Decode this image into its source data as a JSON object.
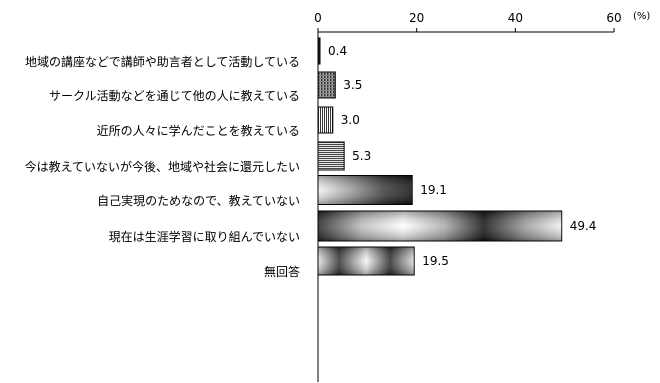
{
  "chart_data": {
    "type": "bar",
    "orientation": "horizontal",
    "unit": "(%)",
    "xlim": [
      0,
      60
    ],
    "ticks": [
      0,
      20,
      40,
      60
    ],
    "grid": false,
    "title": "",
    "xlabel": "",
    "ylabel": "",
    "categories": [
      "地域の講座などで講師や助言者として活動している",
      "サークル活動などを通じて他の人に教えている",
      "近所の人々に学んだことを教えている",
      "今は教えていないが今後、地域や社会に還元したい",
      "自己実現のためなので、教えていない",
      "現在は生涯学習に取り組んでいない",
      "無回答"
    ],
    "values": [
      0.4,
      3.5,
      3.0,
      5.3,
      19.1,
      49.4,
      19.5
    ],
    "value_labels": [
      "0.4",
      "3.5",
      "3.0",
      "5.3",
      "19.1",
      "49.4",
      "19.5"
    ]
  }
}
